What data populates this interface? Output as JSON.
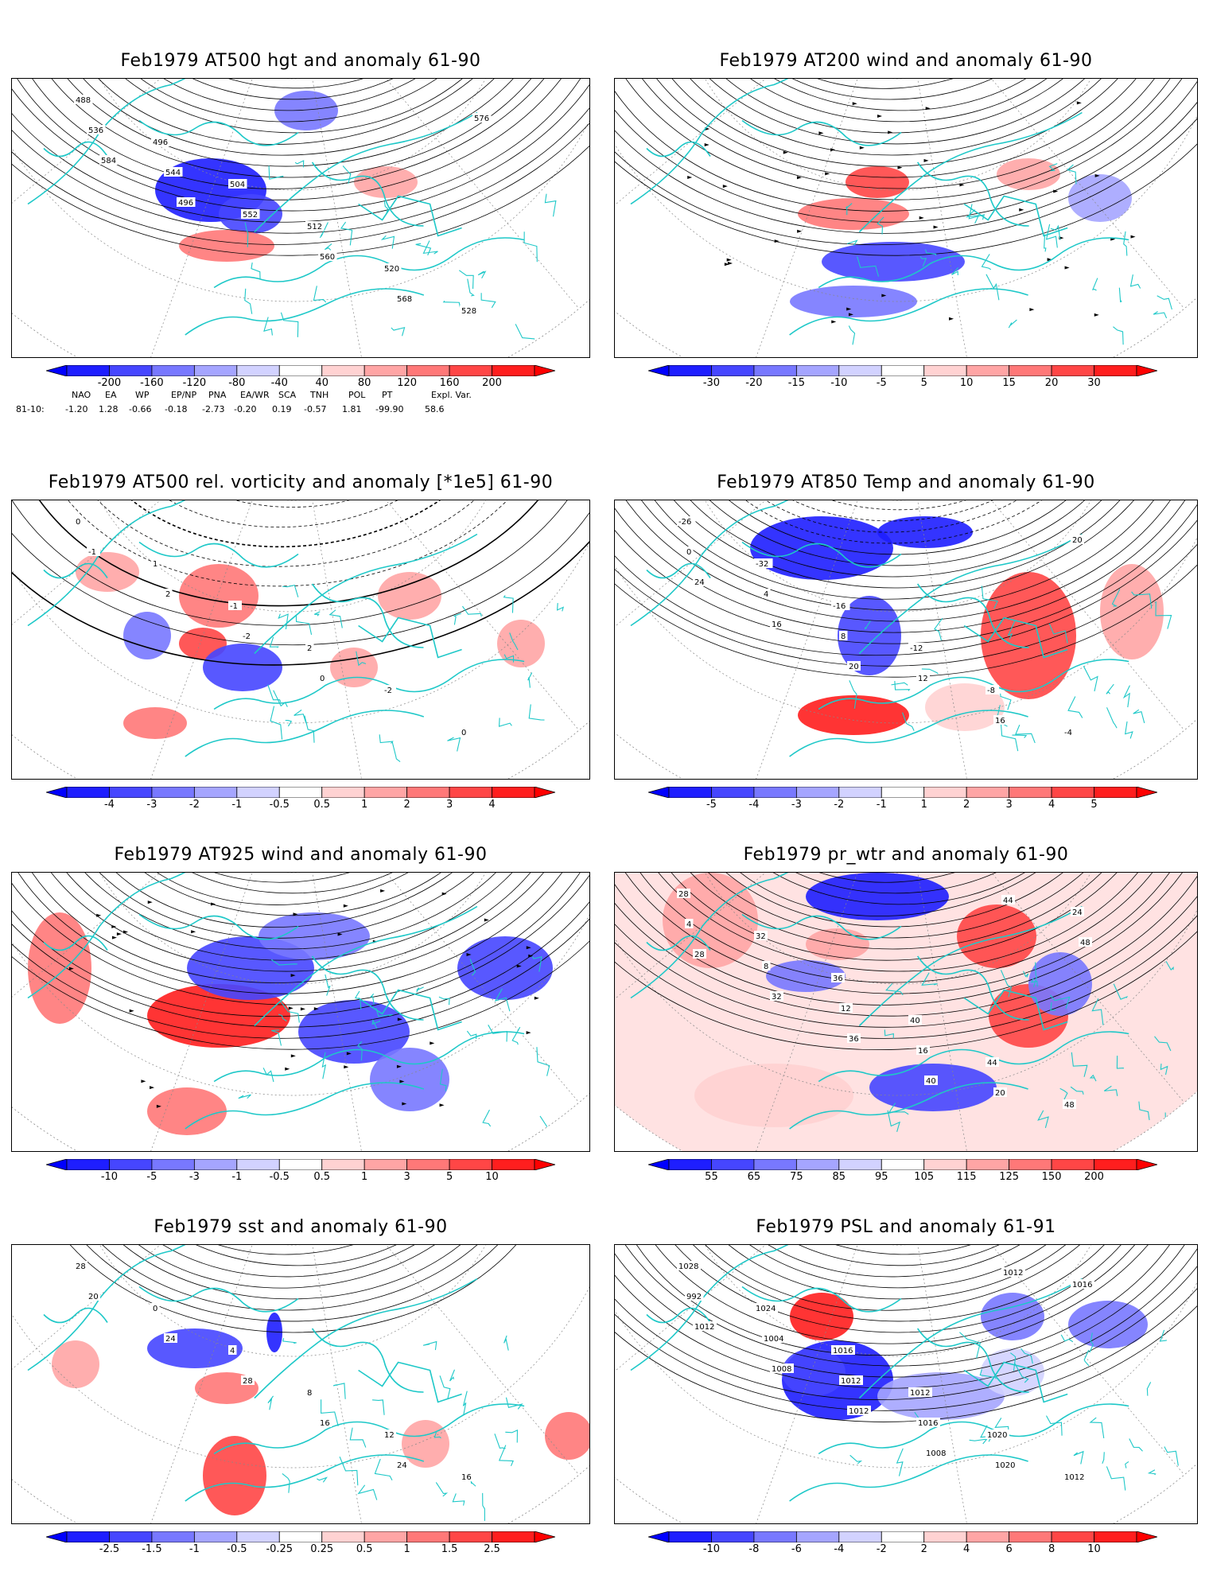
{
  "panels": [
    {
      "id": "p1",
      "title": "Feb1979 AT500 hgt and anomaly 61-90",
      "colorbar": [
        "-200",
        "-160",
        "-120",
        "-80",
        "-40",
        "40",
        "80",
        "120",
        "160",
        "200"
      ],
      "contour_labels": [
        "488",
        "496",
        "504",
        "512",
        "520",
        "528",
        "536",
        "544",
        "552",
        "560",
        "568",
        "576",
        "584",
        "496"
      ]
    },
    {
      "id": "p2",
      "title": "Feb1979 AT200 wind and anomaly 61-90",
      "colorbar": [
        "-30",
        "-20",
        "-15",
        "-10",
        "-5",
        "5",
        "10",
        "15",
        "20",
        "30"
      ],
      "contour_labels": []
    },
    {
      "id": "p3",
      "title": "Feb1979 AT500 rel. vorticity and anomaly [*1e5] 61-90",
      "colorbar": [
        "-4",
        "-3",
        "-2",
        "-1",
        "-0.5",
        "0.5",
        "1",
        "2",
        "3",
        "4"
      ],
      "contour_labels": [
        "0",
        "1",
        "-1",
        "2",
        "-2",
        "0",
        "-1",
        "2",
        "-2",
        "0"
      ]
    },
    {
      "id": "p4",
      "title": "Feb1979 AT850 Temp and anomaly 61-90",
      "colorbar": [
        "-5",
        "-4",
        "-3",
        "-2",
        "-1",
        "1",
        "2",
        "3",
        "4",
        "5"
      ],
      "contour_labels": [
        "-26",
        "-32",
        "-16",
        "-12",
        "-8",
        "-4",
        "0",
        "4",
        "8",
        "12",
        "16",
        "20",
        "24",
        "16",
        "20"
      ]
    },
    {
      "id": "p5",
      "title": "Feb1979 AT925 wind and anomaly 61-90",
      "colorbar": [
        "-10",
        "-5",
        "-3",
        "-1",
        "-0.5",
        "0.5",
        "1",
        "3",
        "5",
        "10"
      ],
      "contour_labels": []
    },
    {
      "id": "p6",
      "title": "Feb1979 pr_wtr and anomaly 61-90",
      "colorbar": [
        "55",
        "65",
        "75",
        "85",
        "95",
        "105",
        "115",
        "125",
        "150",
        "200"
      ],
      "contour_labels": [
        "28",
        "32",
        "36",
        "40",
        "44",
        "48",
        "4",
        "8",
        "12",
        "16",
        "20",
        "24",
        "28",
        "32",
        "36",
        "40",
        "44",
        "48"
      ]
    },
    {
      "id": "p7",
      "title": "Feb1979 sst and anomaly 61-90",
      "colorbar": [
        "-2.5",
        "-1.5",
        "-1",
        "-0.5",
        "-0.25",
        "0.25",
        "0.5",
        "1",
        "1.5",
        "2.5"
      ],
      "contour_labels": [
        "28",
        "0",
        "4",
        "8",
        "12",
        "16",
        "20",
        "24",
        "28",
        "16",
        "24"
      ]
    },
    {
      "id": "p8",
      "title": "Feb1979 PSL and anomaly 61-91",
      "colorbar": [
        "-10",
        "-8",
        "-6",
        "-4",
        "-2",
        "2",
        "4",
        "6",
        "8",
        "10"
      ],
      "contour_labels": [
        "1028",
        "1024",
        "1016",
        "1012",
        "1020",
        "1012",
        "992",
        "1004",
        "1012",
        "1016",
        "1020",
        "1016",
        "1012",
        "1008",
        "1012",
        "1008",
        "1012"
      ]
    }
  ],
  "index_table": {
    "headers": [
      "NAO",
      "EA",
      "WP",
      "EP/NP",
      "PNA",
      "EA/WR",
      "SCA",
      "TNH",
      "POL",
      "PT",
      "Expl. Var."
    ],
    "row_label": "81-10:",
    "values": [
      "-1.20",
      "1.28",
      "-0.66",
      "-0.18",
      "-2.73",
      "-0.20",
      "0.19",
      "-0.57",
      "1.81",
      "-99.90",
      "58.6"
    ]
  },
  "colors": {
    "neg": [
      "#1e1eff",
      "#4646ff",
      "#7878ff",
      "#a5a5ff",
      "#d2d2ff"
    ],
    "pos": [
      "#ffd2d2",
      "#ffa5a5",
      "#ff7878",
      "#ff4646",
      "#ff1e1e"
    ],
    "coast": "#1ec8c8"
  }
}
